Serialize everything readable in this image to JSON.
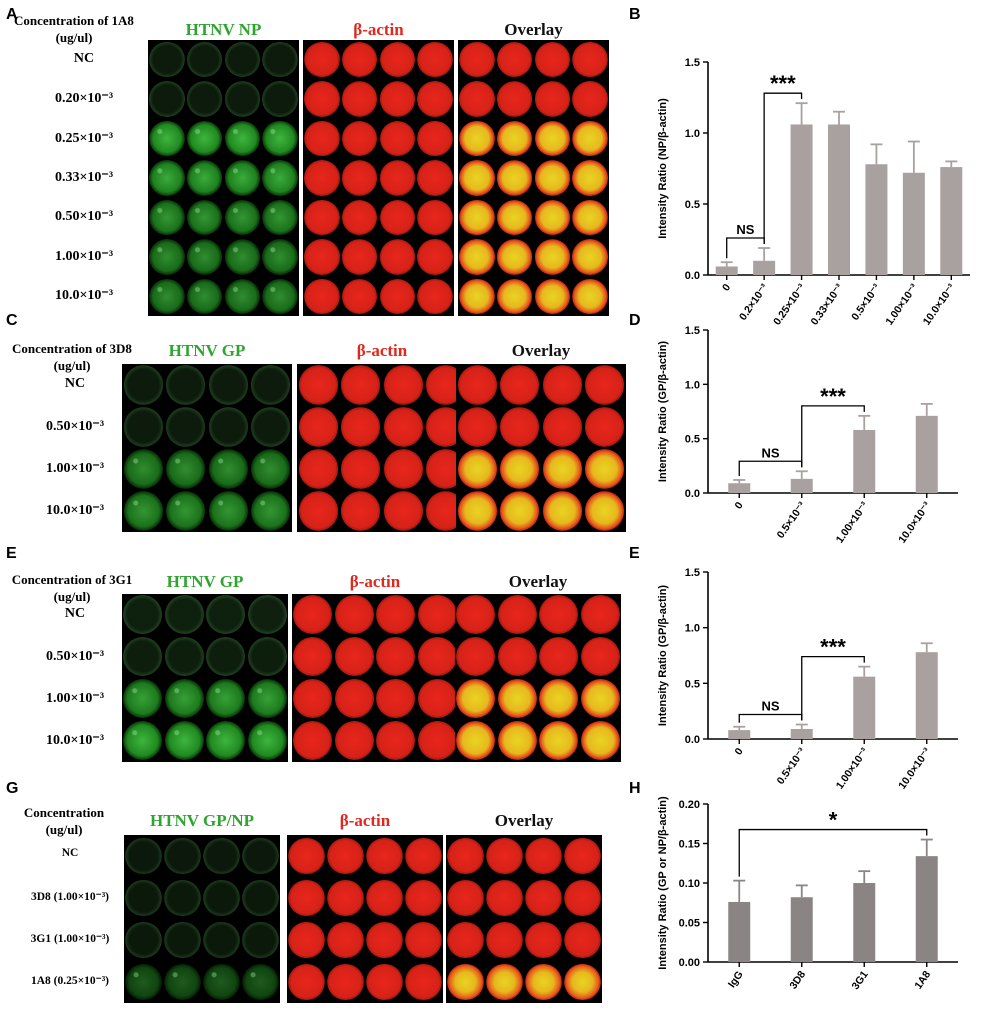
{
  "panels": {
    "A": {
      "letter": "A",
      "concentration_title": [
        "Concentration of 1A8",
        "(ug/ul)"
      ],
      "channels": [
        "HTNV NP",
        "β-actin",
        "Overlay"
      ],
      "rows": [
        "NC",
        "0.20×10⁻³",
        "0.25×10⁻³",
        "0.33×10⁻³",
        "0.50×10⁻³",
        "1.00×10⁻³",
        "10.0×10⁻³"
      ],
      "green_levels": [
        0.05,
        0.05,
        0.9,
        0.85,
        0.75,
        0.7,
        0.7
      ]
    },
    "C": {
      "letter": "C",
      "concentration_title": [
        "Concentration of 3D8",
        "(ug/ul)"
      ],
      "channels": [
        "HTNV GP",
        "β-actin",
        "Overlay"
      ],
      "rows": [
        "NC",
        "0.50×10⁻³",
        "1.00×10⁻³",
        "10.0×10⁻³"
      ],
      "green_levels": [
        0.05,
        0.05,
        0.7,
        0.75
      ]
    },
    "E": {
      "letter": "E",
      "concentration_title": [
        "Concentration of 3G1",
        "(ug/ul)"
      ],
      "channels": [
        "HTNV GP",
        "β-actin",
        "Overlay"
      ],
      "rows": [
        "NC",
        "0.50×10⁻³",
        "1.00×10⁻³",
        "10.0×10⁻³"
      ],
      "green_levels": [
        0.1,
        0.08,
        0.8,
        0.9
      ]
    },
    "G": {
      "letter": "G",
      "concentration_title": [
        "Concentration",
        "(ug/ul)"
      ],
      "channels": [
        "HTNV GP/NP",
        "β-actin",
        "Overlay"
      ],
      "rows": [
        "NC",
        "3D8 (1.00×10⁻³)",
        "3G1 (1.00×10⁻³)",
        "1A8 (0.25×10⁻³)"
      ],
      "green_levels": [
        0.02,
        0.03,
        0.03,
        0.45
      ]
    }
  },
  "colors": {
    "green_text": "#2ea52e",
    "red_text": "#e0281e",
    "bar_light": "#a8a19f",
    "bar_dark": "#8a8584",
    "well_red": "#e8261c",
    "well_green": "#33c433",
    "well_yellow": "#e9d422"
  },
  "chart_data": [
    {
      "panel": "B",
      "type": "bar",
      "categories": [
        "0",
        "0.2×10⁻³",
        "0.25×10⁻³",
        "0.33×10⁻³",
        "0.5×10⁻³",
        "1.00×10⁻³",
        "10.0×10⁻³"
      ],
      "values": [
        0.06,
        0.1,
        1.06,
        1.06,
        0.78,
        0.72,
        0.76
      ],
      "errors": [
        0.03,
        0.09,
        0.15,
        0.09,
        0.14,
        0.22,
        0.04
      ],
      "ylabel": "Intensity Ratio (NP/β-actin)",
      "ylim": [
        0,
        1.5
      ],
      "yticks": [
        "0.0",
        "0.5",
        "1.0",
        "1.5"
      ],
      "annotations": [
        {
          "text": "NS",
          "from": 0,
          "to": 1
        },
        {
          "text": "***",
          "from": 1,
          "to": 2
        }
      ]
    },
    {
      "panel": "D",
      "type": "bar",
      "categories": [
        "0",
        "0.5×10⁻³",
        "1.00×10⁻³",
        "10.0×10⁻³"
      ],
      "values": [
        0.09,
        0.13,
        0.58,
        0.71
      ],
      "errors": [
        0.03,
        0.07,
        0.13,
        0.11
      ],
      "ylabel": "Intensity Ratio (GP/β-actin)",
      "ylim": [
        0,
        1.5
      ],
      "yticks": [
        "0.0",
        "0.5",
        "1.0",
        "1.5"
      ],
      "annotations": [
        {
          "text": "NS",
          "from": 0,
          "to": 1
        },
        {
          "text": "***",
          "from": 1,
          "to": 2
        }
      ]
    },
    {
      "panel": "E",
      "type": "bar",
      "categories": [
        "0",
        "0.5×10⁻³",
        "1.00×10⁻³",
        "10.0×10⁻³"
      ],
      "values": [
        0.08,
        0.09,
        0.56,
        0.78
      ],
      "errors": [
        0.03,
        0.04,
        0.09,
        0.08
      ],
      "ylabel": "Intensity Ratio (GP/β-actin)",
      "ylim": [
        0,
        1.5
      ],
      "yticks": [
        "0.0",
        "0.5",
        "1.0",
        "1.5"
      ],
      "annotations": [
        {
          "text": "NS",
          "from": 0,
          "to": 1
        },
        {
          "text": "***",
          "from": 1,
          "to": 2
        }
      ]
    },
    {
      "panel": "H",
      "type": "bar",
      "categories": [
        "IgG",
        "3D8",
        "3G1",
        "1A8"
      ],
      "values": [
        0.076,
        0.082,
        0.1,
        0.134
      ],
      "errors": [
        0.027,
        0.015,
        0.015,
        0.021
      ],
      "ylabel": "Intensity Ratio (GP or NP/β-actin)",
      "ylim": [
        0,
        0.2
      ],
      "yticks": [
        "0.00",
        "0.05",
        "0.10",
        "0.15",
        "0.20"
      ],
      "annotations": [
        {
          "text": "*",
          "from": 0,
          "to": 3
        }
      ]
    }
  ]
}
